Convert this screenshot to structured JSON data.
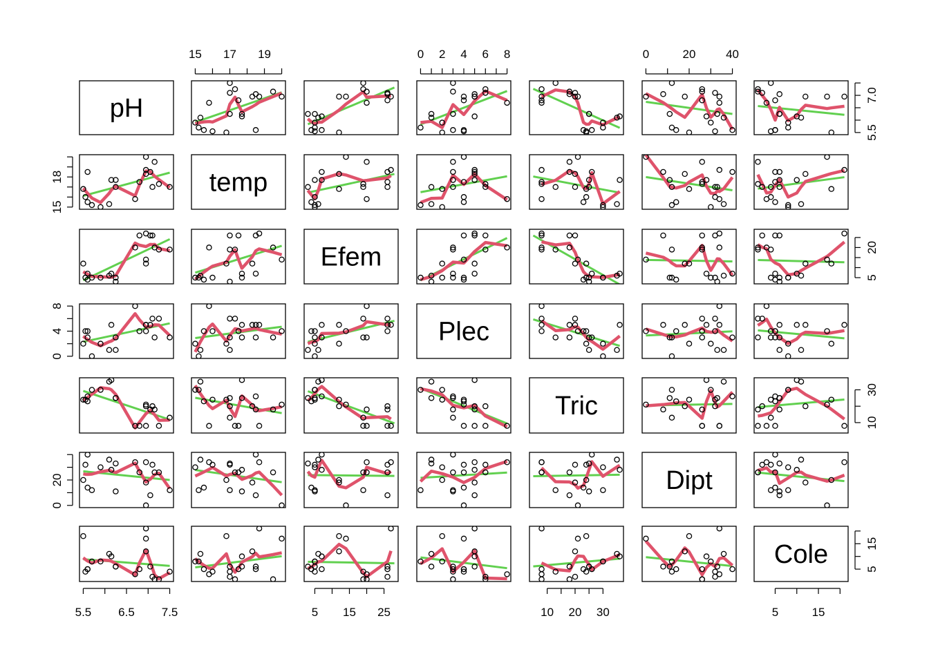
{
  "chart_data": {
    "type": "scatter",
    "kind": "scatterplot-matrix",
    "variables": [
      "pH",
      "temp",
      "Efem",
      "Plec",
      "Tric",
      "Dipt",
      "Cole"
    ],
    "axis_ranges": {
      "pH": [
        5.5,
        7.5
      ],
      "temp": [
        15,
        20
      ],
      "Efem": [
        3,
        28
      ],
      "Plec": [
        0,
        8
      ],
      "Tric": [
        5,
        36
      ],
      "Dipt": [
        0,
        40
      ],
      "Cole": [
        1,
        21
      ]
    },
    "tick_labels": {
      "pH": [
        "5.5",
        "6.5",
        "7.5",
        "7.0",
        "5.5"
      ],
      "temp": [
        "15",
        "17",
        "19",
        "15",
        "18"
      ],
      "Efem": [
        "5",
        "15",
        "25",
        "5",
        "20"
      ],
      "Plec": [
        "0",
        "2",
        "4",
        "6",
        "8",
        "0",
        "4",
        "8"
      ],
      "Tric": [
        "10",
        "20",
        "30",
        "10",
        "30"
      ],
      "Dipt": [
        "0",
        "20",
        "40",
        "0",
        "20"
      ],
      "Cole": [
        "5",
        "15",
        "5",
        "15"
      ]
    },
    "observations": [
      {
        "pH": 5.5,
        "temp": 16.8,
        "Efem": 12,
        "Plec": 2,
        "Tric": 24,
        "Dipt": 20,
        "Cole": 18
      },
      {
        "pH": 5.55,
        "temp": 16.0,
        "Efem": 5,
        "Plec": 4,
        "Tric": 24,
        "Dipt": 32,
        "Cole": 4
      },
      {
        "pH": 5.6,
        "temp": 18.5,
        "Efem": 7,
        "Plec": 3,
        "Tric": 26,
        "Dipt": 40,
        "Cole": 5
      },
      {
        "pH": 5.6,
        "temp": 15.5,
        "Efem": 4,
        "Plec": 4,
        "Tric": 23,
        "Dipt": 14,
        "Cole": 5
      },
      {
        "pH": 5.7,
        "temp": 15.2,
        "Efem": 5,
        "Plec": 0,
        "Tric": 30,
        "Dipt": 12,
        "Cole": 8
      },
      {
        "pH": 5.9,
        "temp": 15.0,
        "Efem": 5,
        "Plec": 2,
        "Tric": 30,
        "Dipt": 30,
        "Cole": 8
      },
      {
        "pH": 6.1,
        "temp": 15.3,
        "Efem": 6,
        "Plec": 1,
        "Tric": 35,
        "Dipt": 36,
        "Cole": 11
      },
      {
        "pH": 6.15,
        "temp": 17.7,
        "Efem": 7,
        "Plec": 5,
        "Tric": 36,
        "Dipt": 28,
        "Cole": 10
      },
      {
        "pH": 6.25,
        "temp": 17.7,
        "Efem": 5,
        "Plec": 3,
        "Tric": 25,
        "Dipt": 11,
        "Cole": 6
      },
      {
        "pH": 6.25,
        "temp": 17.0,
        "Efem": 3,
        "Plec": 1,
        "Tric": 25,
        "Dipt": 33,
        "Cole": 6
      },
      {
        "pH": 6.7,
        "temp": 15.8,
        "Efem": 20,
        "Plec": 8,
        "Tric": 8,
        "Dipt": 34,
        "Cole": 3
      },
      {
        "pH": 6.8,
        "temp": 17.5,
        "Efem": 26,
        "Plec": 4,
        "Tric": 8,
        "Dipt": 26,
        "Cole": 5
      },
      {
        "pH": 6.95,
        "temp": 18.3,
        "Efem": 12,
        "Plec": 5,
        "Tric": 20,
        "Dipt": 18,
        "Cole": 12
      },
      {
        "pH": 6.95,
        "temp": 20.0,
        "Efem": 14,
        "Plec": 4,
        "Tric": 21,
        "Dipt": 0,
        "Cole": 17
      },
      {
        "pH": 6.95,
        "temp": 18.7,
        "Efem": 27,
        "Plec": 5,
        "Tric": 8,
        "Dipt": 34,
        "Cole": 21
      },
      {
        "pH": 7.05,
        "temp": 18.5,
        "Efem": 26,
        "Plec": 5,
        "Tric": 18,
        "Dipt": 8,
        "Cole": 6
      },
      {
        "pH": 7.1,
        "temp": 17.0,
        "Efem": 26,
        "Plec": 6,
        "Tric": 20,
        "Dipt": 32,
        "Cole": 2
      },
      {
        "pH": 7.15,
        "temp": 19.5,
        "Efem": 20,
        "Plec": 3,
        "Tric": 18,
        "Dipt": 26,
        "Cole": 1
      },
      {
        "pH": 7.25,
        "temp": 17.3,
        "Efem": 19,
        "Plec": 6,
        "Tric": 8,
        "Dipt": 26,
        "Cole": 1
      },
      {
        "pH": 7.5,
        "temp": 17.0,
        "Efem": 19,
        "Plec": 3,
        "Tric": 13,
        "Dipt": 12,
        "Cole": 4
      }
    ],
    "series": [
      {
        "values": "linear fit",
        "color": "#61d04f"
      },
      {
        "values": "smoother",
        "color": "#df536b"
      }
    ],
    "point_color": "#000000",
    "grid": false
  }
}
